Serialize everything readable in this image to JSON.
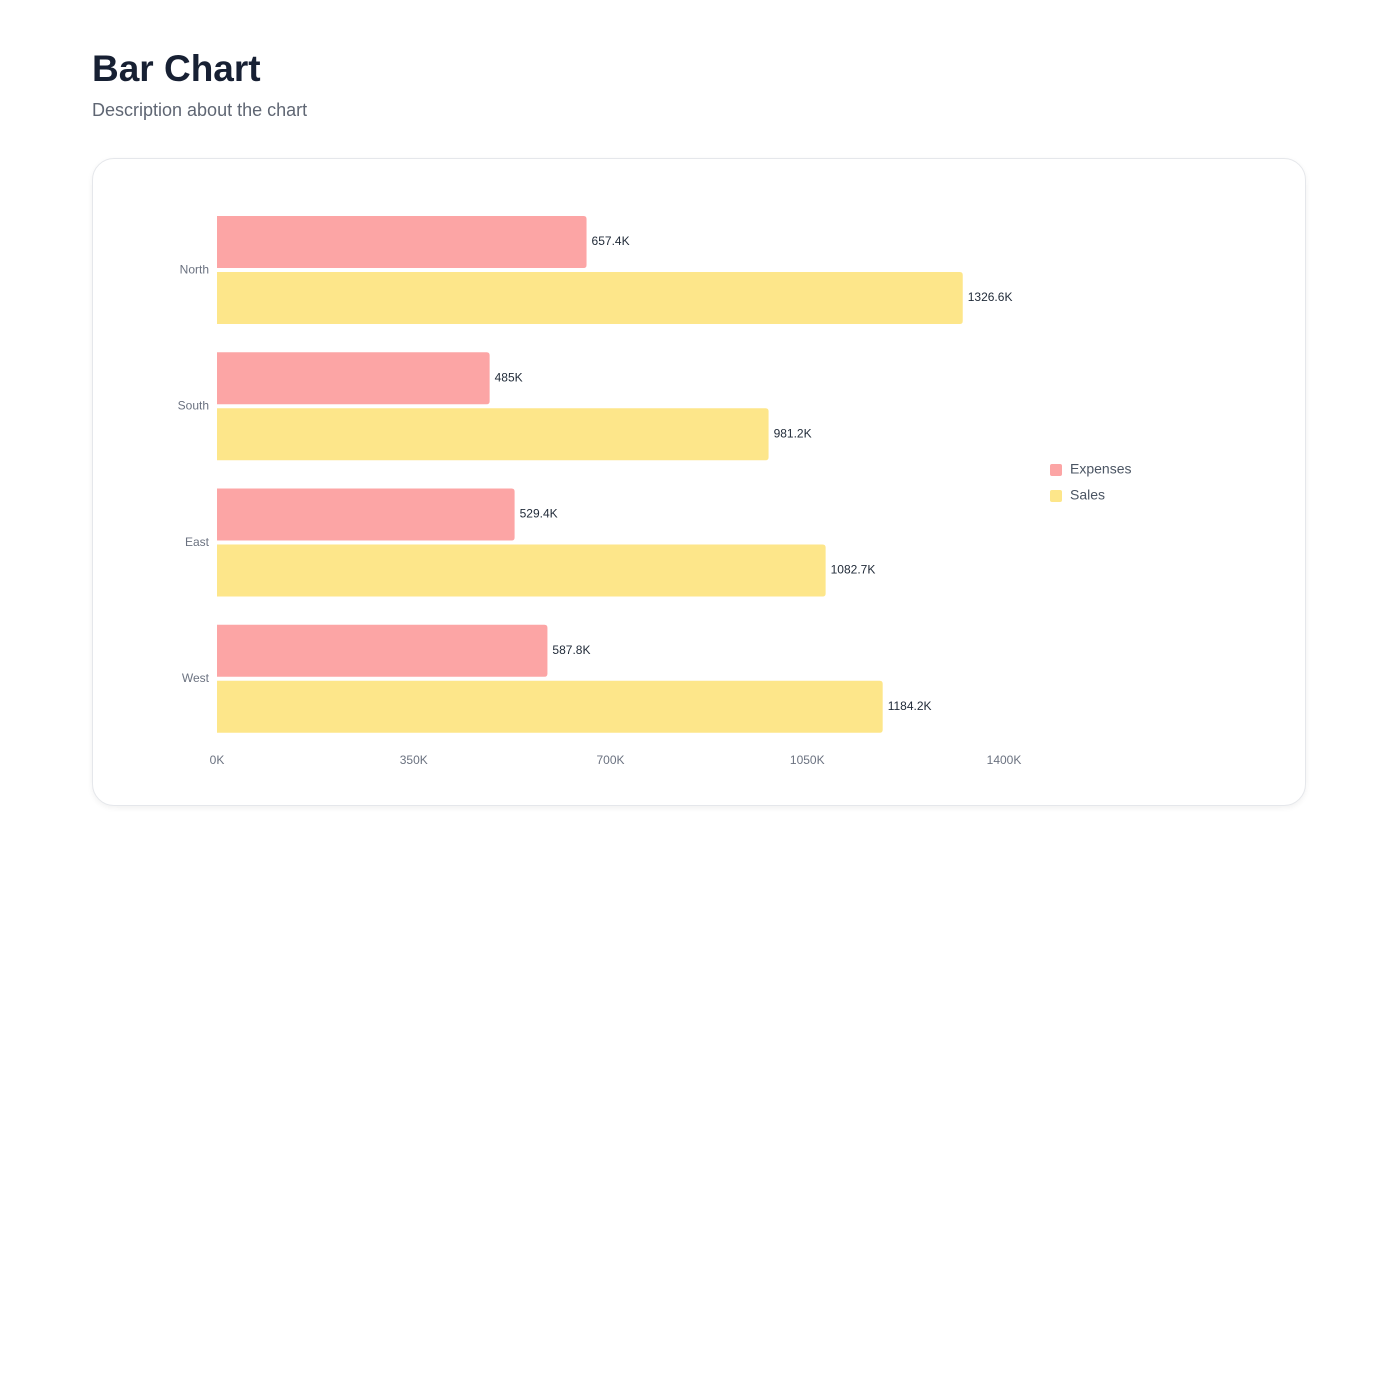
{
  "chart_data": {
    "type": "bar",
    "orientation": "horizontal",
    "title": "Bar Chart",
    "subtitle": "Description about the chart",
    "categories": [
      "North",
      "South",
      "East",
      "West"
    ],
    "series": [
      {
        "name": "Expenses",
        "color": "#fca5a5",
        "values": [
          657400,
          485000,
          529400,
          587800
        ],
        "value_labels": [
          "657.4K",
          "485K",
          "529.4K",
          "587.8K"
        ]
      },
      {
        "name": "Sales",
        "color": "#fde68a",
        "values": [
          1326600,
          981200,
          1082700,
          1184200
        ],
        "value_labels": [
          "1326.6K",
          "981.2K",
          "1082.7K",
          "1184.2K"
        ]
      }
    ],
    "xlim": [
      0,
      1400000
    ],
    "xticks": [
      {
        "value": 0,
        "label": "0K"
      },
      {
        "value": 350000,
        "label": "350K"
      },
      {
        "value": 700000,
        "label": "700K"
      },
      {
        "value": 1050000,
        "label": "1050K"
      },
      {
        "value": 1400000,
        "label": "1400K"
      }
    ],
    "grid": false,
    "legend": "right"
  }
}
